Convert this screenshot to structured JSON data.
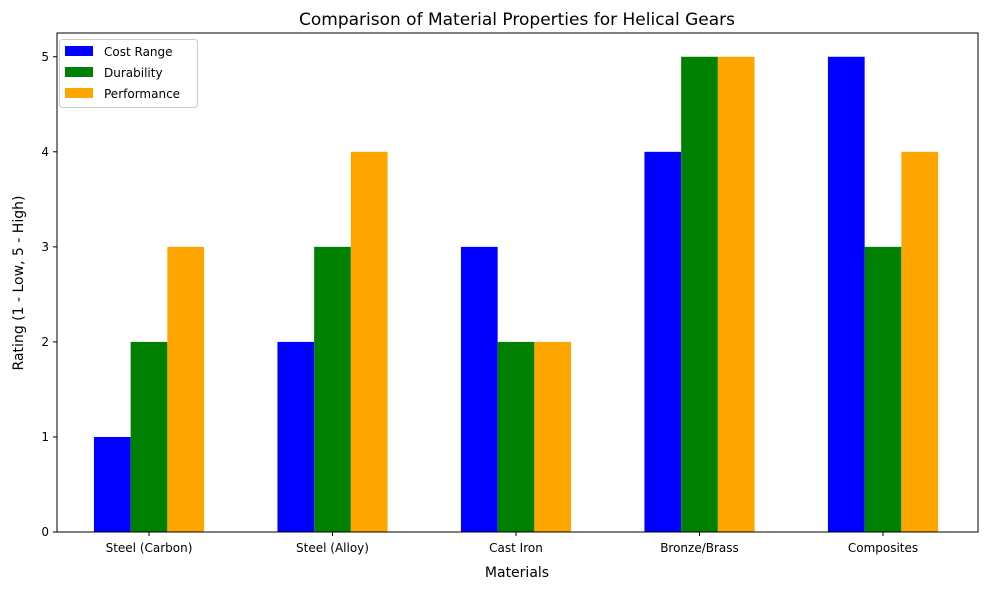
{
  "chart_data": {
    "type": "bar",
    "title": "Comparison of Material Properties for Helical Gears",
    "xlabel": "Materials",
    "ylabel": "Rating (1 - Low, 5 - High)",
    "categories": [
      "Steel (Carbon)",
      "Steel (Alloy)",
      "Cast Iron",
      "Bronze/Brass",
      "Composites"
    ],
    "series": [
      {
        "name": "Cost Range",
        "color": "#0000ff",
        "values": [
          1,
          2,
          3,
          4,
          5
        ]
      },
      {
        "name": "Durability",
        "color": "#008000",
        "values": [
          2,
          3,
          2,
          5,
          3
        ]
      },
      {
        "name": "Performance",
        "color": "#ffa500",
        "values": [
          3,
          4,
          2,
          5,
          4
        ]
      }
    ],
    "ylim": [
      0,
      5.25
    ],
    "yticks": [
      0,
      1,
      2,
      3,
      4,
      5
    ],
    "grid": false,
    "legend": "top-left"
  }
}
